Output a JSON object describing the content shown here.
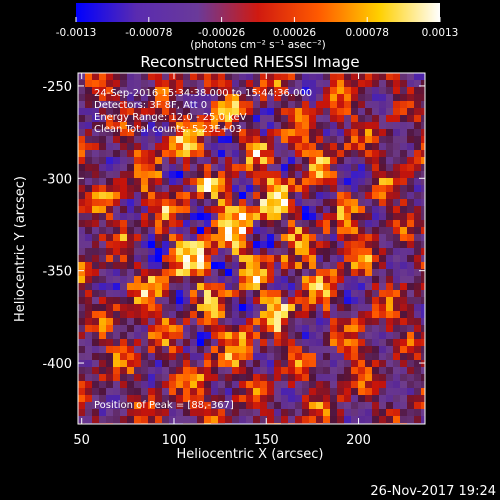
{
  "chart_data": {
    "type": "heatmap",
    "title": "Reconstructed RHESSI Image",
    "xlabel": "Heliocentric X (arcsec)",
    "ylabel": "Heliocentric Y (arcsec)",
    "xlim": [
      48,
      236
    ],
    "ylim": [
      -433,
      -243
    ],
    "x_ticks": [
      50,
      100,
      150,
      200
    ],
    "x_tick_labels": [
      "50",
      "100",
      "150",
      "200"
    ],
    "y_ticks": [
      -250,
      -300,
      -350,
      -400
    ],
    "y_tick_labels": [
      "-250",
      "-300",
      "-350",
      "-400"
    ],
    "colorbar": {
      "label": "(photons cm⁻² s⁻¹ asec⁻²)",
      "min": -0.0013,
      "max": 0.0013,
      "ticks": [
        -0.0013,
        -0.00078,
        -0.00026,
        0.00026,
        0.00078,
        0.0013
      ],
      "tick_labels": [
        "-0.0013",
        "-0.00078",
        "-0.00026",
        "0.00026",
        "0.00078",
        "0.0013"
      ],
      "colormap": [
        "#0000ff",
        "#5a2bb0",
        "#6a3a9a",
        "#d01a10",
        "#ff5a00",
        "#ffd000",
        "#ffffff"
      ]
    },
    "annotations": [
      "24-Sep-2016 15:34:38.000 to 15:44:36.000",
      "Detectors: 3F 8F, Att 0",
      "Energy Range: 12.0 - 25.0 keV",
      "Clean     Total counts: 5.23E+03"
    ],
    "peak_label": "Position of Peak = [88,-367]",
    "peak": [
      88,
      -367
    ],
    "grid": false
  },
  "footer": {
    "timestamp": "26-Nov-2017 19:24"
  }
}
